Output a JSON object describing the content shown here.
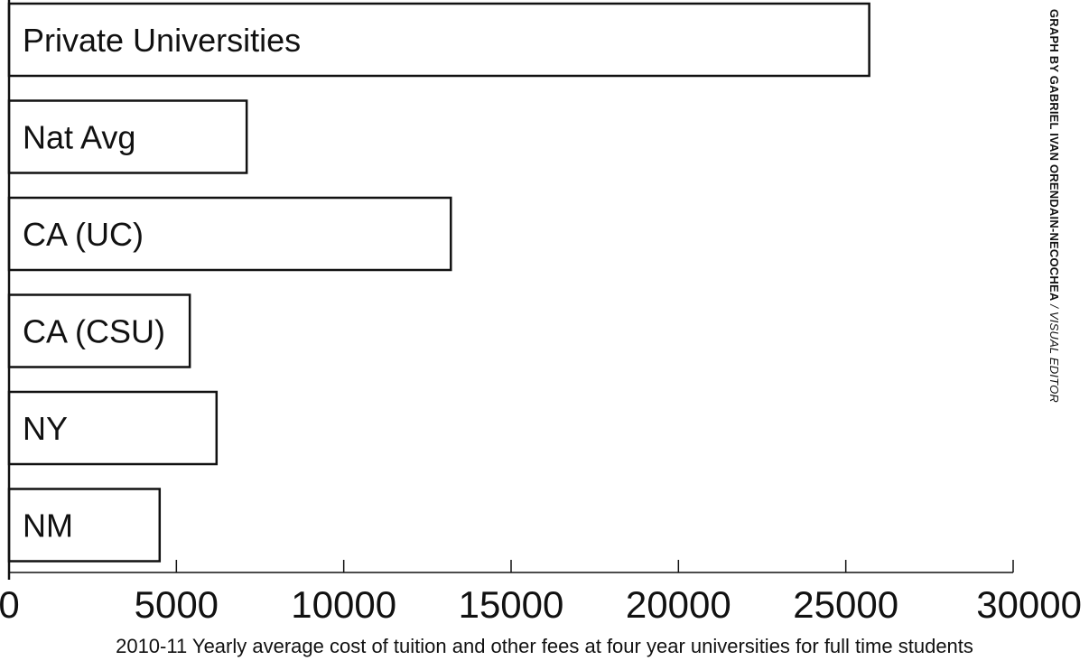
{
  "chart_data": {
    "type": "bar",
    "orientation": "horizontal",
    "categories": [
      "Private Universities",
      "Nat Avg",
      "CA (UC)",
      "CA (CSU)",
      "NY",
      "NM"
    ],
    "values": [
      25700,
      7100,
      13200,
      5400,
      6200,
      4500
    ],
    "xlabel": "2010-11 Yearly average cost of tuition and other fees at four year universities for full time students",
    "xlim": [
      0,
      30000
    ],
    "xticks": [
      0,
      5000,
      10000,
      15000,
      20000,
      25000,
      30000
    ],
    "grid": false,
    "colors": {
      "bar_fill": "#ffffff",
      "bar_stroke": "#111111",
      "text": "#111111"
    }
  },
  "credit": {
    "main": "GRAPH BY GABRIEL IVAN ORENDAIN-NECOCHEA",
    "role": " / VISUAL EDITOR"
  }
}
